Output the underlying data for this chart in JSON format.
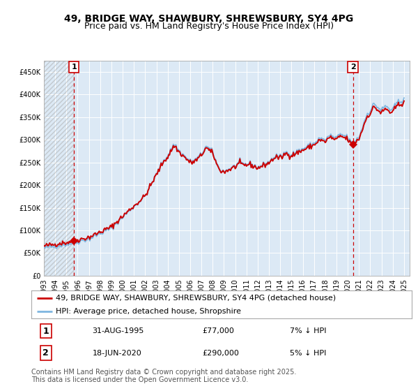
{
  "title": "49, BRIDGE WAY, SHAWBURY, SHREWSBURY, SY4 4PG",
  "subtitle": "Price paid vs. HM Land Registry's House Price Index (HPI)",
  "ylim": [
    0,
    475000
  ],
  "yticks": [
    0,
    50000,
    100000,
    150000,
    200000,
    250000,
    300000,
    350000,
    400000,
    450000
  ],
  "ytick_labels": [
    "£0",
    "£50K",
    "£100K",
    "£150K",
    "£200K",
    "£250K",
    "£300K",
    "£350K",
    "£400K",
    "£450K"
  ],
  "hpi_color": "#7EB6E0",
  "price_color": "#CC0000",
  "background_color": "#FFFFFF",
  "plot_bg_color": "#DCE9F5",
  "grid_color": "#FFFFFF",
  "legend_label_price": "49, BRIDGE WAY, SHAWBURY, SHREWSBURY, SY4 4PG (detached house)",
  "legend_label_hpi": "HPI: Average price, detached house, Shropshire",
  "annotation1_label": "1",
  "annotation1_date": "31-AUG-1995",
  "annotation1_price": "£77,000",
  "annotation1_hpi": "7% ↓ HPI",
  "annotation2_label": "2",
  "annotation2_date": "18-JUN-2020",
  "annotation2_price": "£290,000",
  "annotation2_hpi": "5% ↓ HPI",
  "footer": "Contains HM Land Registry data © Crown copyright and database right 2025.\nThis data is licensed under the Open Government Licence v3.0.",
  "hpi_monthly": {
    "years": [
      1993.0,
      1993.083,
      1993.167,
      1993.25,
      1993.333,
      1993.417,
      1993.5,
      1993.583,
      1993.667,
      1993.75,
      1993.833,
      1993.917,
      1994.0,
      1994.083,
      1994.167,
      1994.25,
      1994.333,
      1994.417,
      1994.5,
      1994.583,
      1994.667,
      1994.75,
      1994.833,
      1994.917,
      1995.0,
      1995.083,
      1995.167,
      1995.25,
      1995.333,
      1995.417,
      1995.5,
      1995.583,
      1995.667,
      1995.75,
      1995.833,
      1995.917,
      1996.0,
      1996.083,
      1996.167,
      1996.25,
      1996.333,
      1996.417,
      1996.5,
      1996.583,
      1996.667,
      1996.75,
      1996.833,
      1996.917,
      1997.0,
      1997.083,
      1997.167,
      1997.25,
      1997.333,
      1997.417,
      1997.5,
      1997.583,
      1997.667,
      1997.75,
      1997.833,
      1997.917,
      1998.0,
      1998.083,
      1998.167,
      1998.25,
      1998.333,
      1998.417,
      1998.5,
      1998.583,
      1998.667,
      1998.75,
      1998.833,
      1998.917,
      1999.0,
      1999.083,
      1999.167,
      1999.25,
      1999.333,
      1999.417,
      1999.5,
      1999.583,
      1999.667,
      1999.75,
      1999.833,
      1999.917,
      2000.0,
      2000.083,
      2000.167,
      2000.25,
      2000.333,
      2000.417,
      2000.5,
      2000.583,
      2000.667,
      2000.75,
      2000.833,
      2000.917,
      2001.0,
      2001.083,
      2001.167,
      2001.25,
      2001.333,
      2001.417,
      2001.5,
      2001.583,
      2001.667,
      2001.75,
      2001.833,
      2001.917,
      2002.0,
      2002.083,
      2002.167,
      2002.25,
      2002.333,
      2002.417,
      2002.5,
      2002.583,
      2002.667,
      2002.75,
      2002.833,
      2002.917,
      2003.0,
      2003.083,
      2003.167,
      2003.25,
      2003.333,
      2003.417,
      2003.5,
      2003.583,
      2003.667,
      2003.75,
      2003.833,
      2003.917,
      2004.0,
      2004.083,
      2004.167,
      2004.25,
      2004.333,
      2004.417,
      2004.5,
      2004.583,
      2004.667,
      2004.75,
      2004.833,
      2004.917,
      2005.0,
      2005.083,
      2005.167,
      2005.25,
      2005.333,
      2005.417,
      2005.5,
      2005.583,
      2005.667,
      2005.75,
      2005.833,
      2005.917,
      2006.0,
      2006.083,
      2006.167,
      2006.25,
      2006.333,
      2006.417,
      2006.5,
      2006.583,
      2006.667,
      2006.75,
      2006.833,
      2006.917,
      2007.0,
      2007.083,
      2007.167,
      2007.25,
      2007.333,
      2007.417,
      2007.5,
      2007.583,
      2007.667,
      2007.75,
      2007.833,
      2007.917,
      2008.0,
      2008.083,
      2008.167,
      2008.25,
      2008.333,
      2008.417,
      2008.5,
      2008.583,
      2008.667,
      2008.75,
      2008.833,
      2008.917,
      2009.0,
      2009.083,
      2009.167,
      2009.25,
      2009.333,
      2009.417,
      2009.5,
      2009.583,
      2009.667,
      2009.75,
      2009.833,
      2009.917,
      2010.0,
      2010.083,
      2010.167,
      2010.25,
      2010.333,
      2010.417,
      2010.5,
      2010.583,
      2010.667,
      2010.75,
      2010.833,
      2010.917,
      2011.0,
      2011.083,
      2011.167,
      2011.25,
      2011.333,
      2011.417,
      2011.5,
      2011.583,
      2011.667,
      2011.75,
      2011.833,
      2011.917,
      2012.0,
      2012.083,
      2012.167,
      2012.25,
      2012.333,
      2012.417,
      2012.5,
      2012.583,
      2012.667,
      2012.75,
      2012.833,
      2012.917,
      2013.0,
      2013.083,
      2013.167,
      2013.25,
      2013.333,
      2013.417,
      2013.5,
      2013.583,
      2013.667,
      2013.75,
      2013.833,
      2013.917,
      2014.0,
      2014.083,
      2014.167,
      2014.25,
      2014.333,
      2014.417,
      2014.5,
      2014.583,
      2014.667,
      2014.75,
      2014.833,
      2014.917,
      2015.0,
      2015.083,
      2015.167,
      2015.25,
      2015.333,
      2015.417,
      2015.5,
      2015.583,
      2015.667,
      2015.75,
      2015.833,
      2015.917,
      2016.0,
      2016.083,
      2016.167,
      2016.25,
      2016.333,
      2016.417,
      2016.5,
      2016.583,
      2016.667,
      2016.75,
      2016.833,
      2016.917,
      2017.0,
      2017.083,
      2017.167,
      2017.25,
      2017.333,
      2017.417,
      2017.5,
      2017.583,
      2017.667,
      2017.75,
      2017.833,
      2017.917,
      2018.0,
      2018.083,
      2018.167,
      2018.25,
      2018.333,
      2018.417,
      2018.5,
      2018.583,
      2018.667,
      2018.75,
      2018.833,
      2018.917,
      2019.0,
      2019.083,
      2019.167,
      2019.25,
      2019.333,
      2019.417,
      2019.5,
      2019.583,
      2019.667,
      2019.75,
      2019.833,
      2019.917,
      2020.0,
      2020.083,
      2020.167,
      2020.25,
      2020.333,
      2020.417,
      2020.5,
      2020.583,
      2020.667,
      2020.75,
      2020.833,
      2020.917,
      2021.0,
      2021.083,
      2021.167,
      2021.25,
      2021.333,
      2021.417,
      2021.5,
      2021.583,
      2021.667,
      2021.75,
      2021.833,
      2021.917,
      2022.0,
      2022.083,
      2022.167,
      2022.25,
      2022.333,
      2022.417,
      2022.5,
      2022.583,
      2022.667,
      2022.75,
      2022.833,
      2022.917,
      2023.0,
      2023.083,
      2023.167,
      2023.25,
      2023.333,
      2023.417,
      2023.5,
      2023.583,
      2023.667,
      2023.75,
      2023.833,
      2023.917,
      2024.0,
      2024.083,
      2024.167,
      2024.25,
      2024.333,
      2024.417,
      2024.5,
      2024.583,
      2024.667,
      2024.75,
      2024.833,
      2024.917,
      2025.0
    ],
    "values": [
      60500,
      61000,
      61500,
      62000,
      62500,
      63000,
      63200,
      63500,
      63800,
      64000,
      64200,
      64500,
      65000,
      65500,
      66000,
      66500,
      67000,
      67200,
      67500,
      67800,
      68000,
      68200,
      68500,
      68800,
      69000,
      69500,
      70000,
      70500,
      71000,
      71500,
      72000,
      72500,
      73000,
      73500,
      74000,
      74500,
      75000,
      75500,
      76000,
      76500,
      77000,
      77500,
      78000,
      78500,
      79000,
      79500,
      80000,
      80500,
      81000,
      82000,
      83000,
      84000,
      85000,
      86000,
      87000,
      88000,
      89000,
      90000,
      91000,
      92000,
      93000,
      94000,
      95000,
      96000,
      97000,
      98000,
      99000,
      100000,
      101000,
      102000,
      103000,
      104000,
      105000,
      107000,
      109000,
      111000,
      113000,
      115000,
      117000,
      119000,
      121000,
      123000,
      125000,
      127000,
      129000,
      131000,
      133000,
      135000,
      137000,
      139000,
      141000,
      143000,
      145000,
      147000,
      149000,
      151000,
      152000,
      154000,
      156000,
      158000,
      160000,
      162000,
      164000,
      166000,
      168000,
      170000,
      172000,
      174000,
      176000,
      180000,
      184000,
      188000,
      192000,
      196000,
      200000,
      204000,
      208000,
      212000,
      216000,
      220000,
      224000,
      228000,
      232000,
      236000,
      240000,
      244000,
      248000,
      252000,
      256000,
      258000,
      260000,
      262000,
      264000,
      268000,
      272000,
      276000,
      280000,
      284000,
      288000,
      290000,
      288000,
      285000,
      282000,
      279000,
      276000,
      274000,
      272000,
      270000,
      268000,
      266000,
      264000,
      262000,
      260000,
      258000,
      256000,
      254000,
      252000,
      252000,
      252000,
      253000,
      254000,
      255000,
      256000,
      258000,
      260000,
      262000,
      264000,
      266000,
      268000,
      272000,
      276000,
      280000,
      284000,
      285000,
      284000,
      282000,
      280000,
      278000,
      276000,
      274000,
      272000,
      268000,
      262000,
      256000,
      250000,
      244000,
      240000,
      237000,
      235000,
      233000,
      232000,
      231000,
      230000,
      231000,
      232000,
      233000,
      234000,
      235000,
      236000,
      237000,
      238000,
      239000,
      240000,
      241000,
      242000,
      244000,
      246000,
      248000,
      249000,
      249000,
      248000,
      247000,
      246000,
      246000,
      246000,
      246000,
      246000,
      247000,
      248000,
      248000,
      247000,
      246000,
      245000,
      244000,
      243000,
      242000,
      241000,
      240000,
      240000,
      240000,
      241000,
      242000,
      243000,
      244000,
      245000,
      246000,
      247000,
      248000,
      249000,
      250000,
      251000,
      253000,
      255000,
      257000,
      259000,
      261000,
      263000,
      264000,
      264000,
      264000,
      263000,
      262000,
      262000,
      263000,
      265000,
      267000,
      269000,
      271000,
      272000,
      272000,
      271000,
      270000,
      269000,
      268000,
      268000,
      269000,
      270000,
      271000,
      272000,
      273000,
      274000,
      275000,
      276000,
      277000,
      278000,
      279000,
      280000,
      281000,
      282000,
      283000,
      284000,
      285000,
      286000,
      287000,
      288000,
      289000,
      290000,
      291000,
      292000,
      294000,
      296000,
      298000,
      300000,
      302000,
      303000,
      303000,
      302000,
      301000,
      300000,
      299000,
      300000,
      302000,
      304000,
      306000,
      308000,
      309000,
      309000,
      308000,
      307000,
      306000,
      305000,
      304000,
      304000,
      306000,
      308000,
      310000,
      312000,
      312000,
      311000,
      310000,
      309000,
      308000,
      307000,
      306000,
      305000,
      302000,
      299000,
      296000,
      294000,
      293000,
      294000,
      296000,
      298000,
      300000,
      302000,
      304000,
      306000,
      312000,
      318000,
      324000,
      330000,
      336000,
      342000,
      348000,
      354000,
      358000,
      360000,
      362000,
      364000,
      368000,
      372000,
      376000,
      378000,
      378000,
      376000,
      374000,
      372000,
      370000,
      368000,
      366000,
      366000,
      368000,
      370000,
      372000,
      374000,
      374000,
      373000,
      371000,
      369000,
      367000,
      366000,
      365000,
      366000,
      370000,
      374000,
      378000,
      380000,
      382000,
      383000,
      384000,
      385000,
      386000,
      387000,
      388000,
      395000
    ]
  },
  "point1_x": 1995.667,
  "point1_y": 77000,
  "point2_x": 2020.458,
  "point2_y": 290000,
  "xlim_start": 1993.0,
  "xlim_end": 2025.5,
  "xtick_years": [
    1993,
    1994,
    1995,
    1996,
    1997,
    1998,
    1999,
    2000,
    2001,
    2002,
    2003,
    2004,
    2005,
    2006,
    2007,
    2008,
    2009,
    2010,
    2011,
    2012,
    2013,
    2014,
    2015,
    2016,
    2017,
    2018,
    2019,
    2020,
    2021,
    2022,
    2023,
    2024,
    2025
  ],
  "title_fontsize": 10,
  "subtitle_fontsize": 9,
  "tick_fontsize": 7,
  "legend_fontsize": 8,
  "annotation_fontsize": 8,
  "footer_fontsize": 7
}
